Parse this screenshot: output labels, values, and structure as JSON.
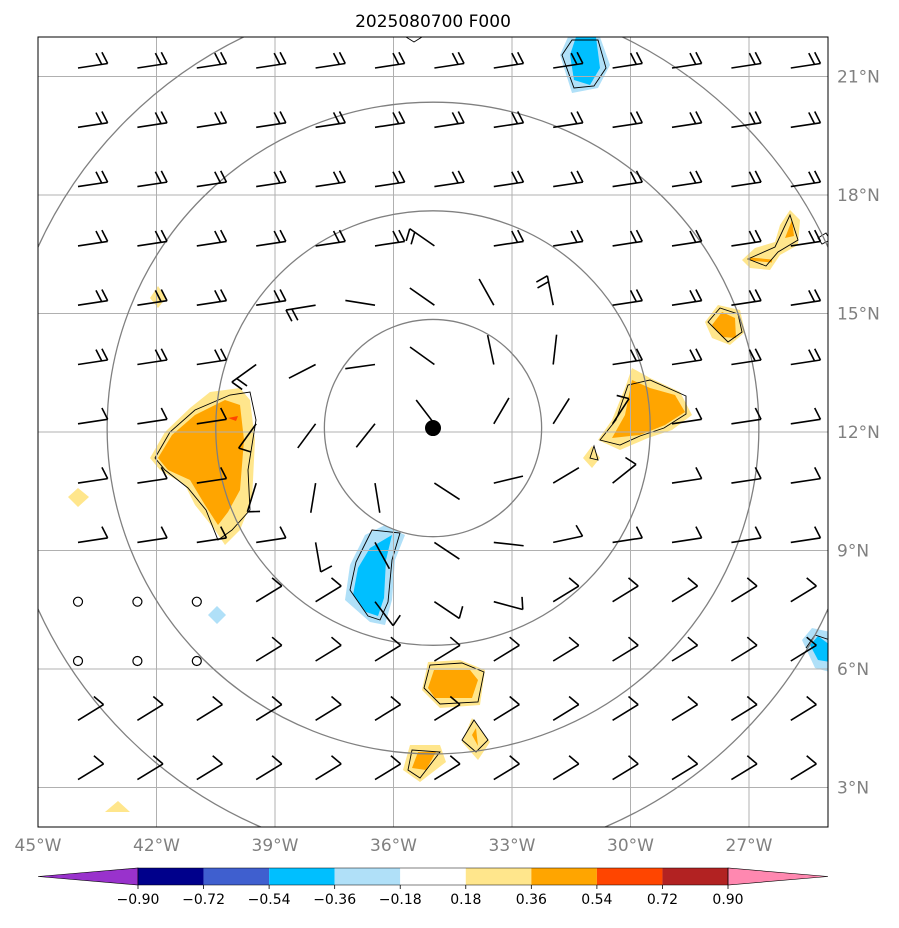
{
  "title": "2025080700 F000",
  "map": {
    "lon_range": [
      -45,
      -25
    ],
    "lat_range": [
      2,
      22
    ],
    "lon_ticks": [
      "45°W",
      "42°W",
      "39°W",
      "36°W",
      "33°W",
      "30°W",
      "27°W"
    ],
    "lat_ticks": [
      "21°N",
      "18°N",
      "15°N",
      "12°N",
      "9°N",
      "6°N",
      "3°N"
    ],
    "storm_center": {
      "lon": -35,
      "lat": 12.1
    },
    "range_rings_deg": [
      2.75,
      5.5,
      8.25,
      11.0
    ],
    "gridlines": true,
    "colors": {
      "gridline": "#b0b0b0",
      "ring": "#808080",
      "barb": "#000000"
    }
  },
  "colorbar": {
    "labels": [
      "−0.90",
      "−0.72",
      "−0.54",
      "−0.36",
      "−0.18",
      "0.18",
      "0.36",
      "0.54",
      "0.72",
      "0.90"
    ],
    "colors": [
      "#9932cc",
      "#00008b",
      "#3f5fcf",
      "#00bfff",
      "#b0e0f8",
      "#ffffff",
      "#ffe68c",
      "#ffa500",
      "#ff4500",
      "#b22222",
      "#ff88b0"
    ]
  },
  "shaded_regions": [
    {
      "name": "anomaly-pos-west",
      "value": 0.45
    },
    {
      "name": "anomaly-neg-south",
      "value": -0.4
    },
    {
      "name": "anomaly-pos-east",
      "value": 0.45
    },
    {
      "name": "anomaly-pos-south",
      "value": 0.45
    },
    {
      "name": "anomaly-neg-north",
      "value": -0.4
    }
  ]
}
